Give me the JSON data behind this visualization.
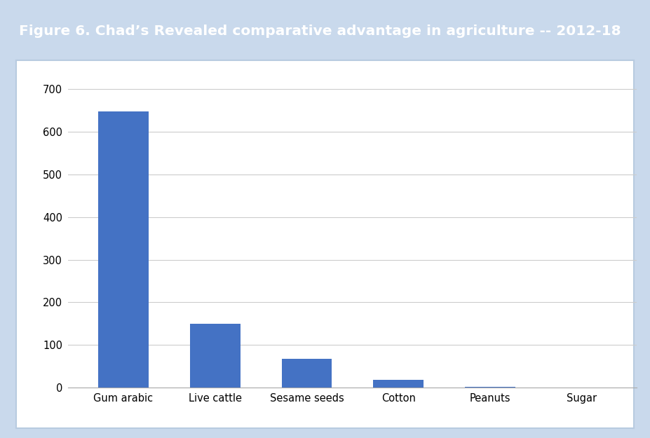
{
  "title": "Figure 6. Chad’s Revealed comparative advantage in agriculture -- 2012-18",
  "categories": [
    "Gum arabic",
    "Live cattle",
    "Sesame seeds",
    "Cotton",
    "Peanuts",
    "Sugar"
  ],
  "values": [
    648,
    150,
    68,
    18,
    1.5,
    0.5
  ],
  "bar_color": "#4472C4",
  "ylim": [
    0,
    750
  ],
  "yticks": [
    0,
    100,
    200,
    300,
    400,
    500,
    600,
    700
  ],
  "title_bg_color": "#2E75B6",
  "title_text_color": "#FFFFFF",
  "plot_bg_color": "#FFFFFF",
  "outer_bg_color": "#C9D9EC",
  "inner_border_color": "#B8CBE0",
  "grid_color": "#CCCCCC",
  "title_fontsize": 14.5,
  "tick_fontsize": 10.5,
  "bar_width": 0.55
}
